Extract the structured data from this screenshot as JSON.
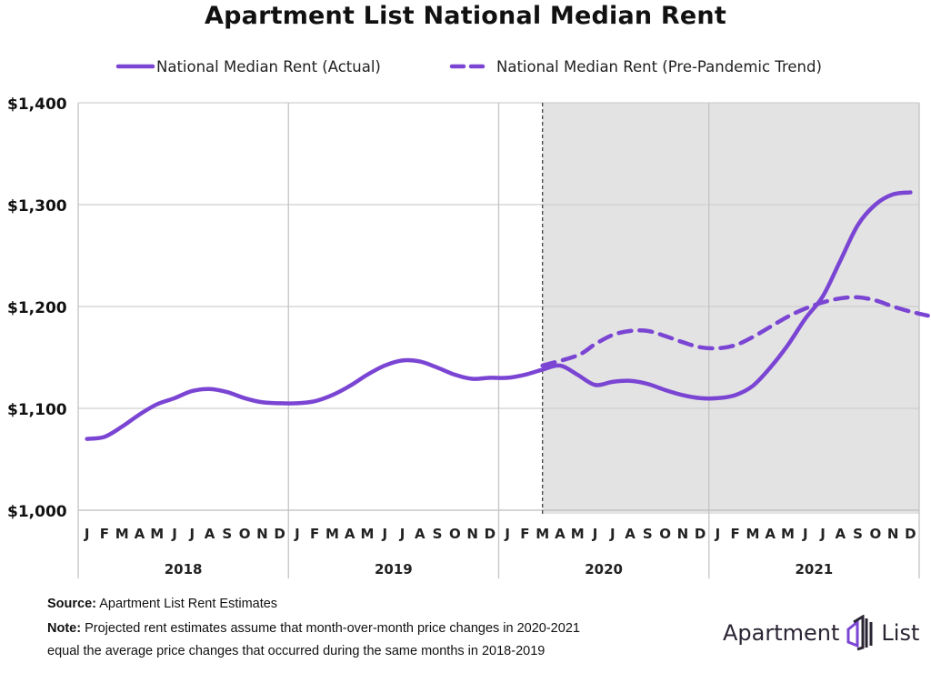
{
  "chart_data": {
    "type": "line",
    "title": "Apartment List National Median Rent",
    "xlabel": "",
    "ylabel": "",
    "ylim": [
      1000,
      1400
    ],
    "yticks": [
      1000,
      1100,
      1200,
      1300,
      1400
    ],
    "ytick_labels": [
      "$1,000",
      "$1,100",
      "$1,200",
      "$1,300",
      "$1,400"
    ],
    "years": [
      "2018",
      "2019",
      "2020",
      "2021"
    ],
    "month_labels": [
      "J",
      "F",
      "M",
      "A",
      "M",
      "J",
      "J",
      "A",
      "S",
      "O",
      "N",
      "D"
    ],
    "grid": true,
    "legend_position": "top",
    "shaded_region": {
      "from": "2020-03",
      "to": "2021-12",
      "color": "#e3e3e3"
    },
    "series": [
      {
        "name": "National Median Rent (Actual)",
        "style": "solid",
        "color": "#7b45d4",
        "start": "2018-01",
        "values": [
          1070,
          1072,
          1082,
          1094,
          1104,
          1110,
          1117,
          1119,
          1116,
          1110,
          1106,
          1105,
          1105,
          1107,
          1113,
          1122,
          1133,
          1142,
          1147,
          1146,
          1140,
          1133,
          1129,
          1130,
          1130,
          1133,
          1138,
          1142,
          1133,
          1123,
          1126,
          1127,
          1124,
          1118,
          1113,
          1110,
          1110,
          1113,
          1122,
          1140,
          1162,
          1188,
          1210,
          1245,
          1280,
          1300,
          1310,
          1312
        ]
      },
      {
        "name": "National Median Rent (Pre-Pandemic Trend)",
        "style": "dashed",
        "color": "#7b45d4",
        "start": "2020-04",
        "values": [
          1142,
          1152,
          1163,
          1172,
          1176,
          1176,
          1171,
          1165,
          1160,
          1159,
          1162,
          1170,
          1180,
          1190,
          1198,
          1204,
          1208,
          1209,
          1206,
          1200,
          1195,
          1191
        ]
      }
    ]
  },
  "footer": {
    "source_label": "Source:",
    "source_text": "Apartment List Rent Estimates",
    "note_label": "Note:",
    "note_line1": "Projected rent estimates assume that month-over-month price changes in 2020-2021",
    "note_line2": "equal the average price changes that occurred during the same months in 2018-2019"
  },
  "logo": {
    "left": "Apartment",
    "right": "List"
  }
}
